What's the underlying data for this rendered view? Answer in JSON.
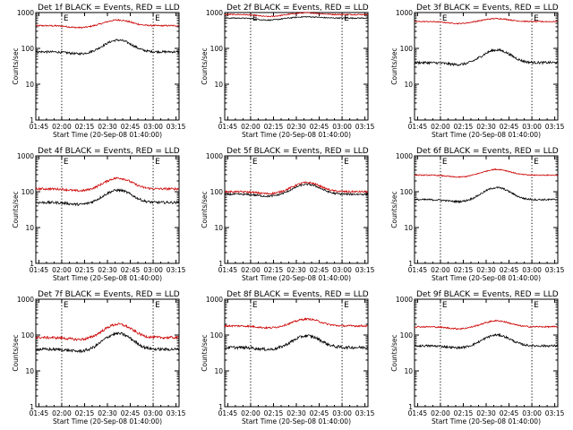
{
  "chart_data": [
    {
      "type": "line",
      "title": "Det 1f BLACK = Events, RED = LLD",
      "xlabel": "Start Time (20-Sep-08 01:40:00)",
      "ylabel": "Counts/sec",
      "yscale": "log",
      "ylim": [
        1,
        1000
      ],
      "xlim_min": [
        103,
        197
      ],
      "x_ticks": [
        "01:45",
        "02:00",
        "02:15",
        "02:30",
        "02:45",
        "03:00",
        "03:15"
      ],
      "y_ticks": [
        "1",
        "10",
        "100",
        "1000"
      ],
      "event_markers": {
        "label": "E",
        "times_min": [
          120,
          180
        ]
      },
      "series": [
        {
          "name": "Events",
          "color": "#000000",
          "base": 80,
          "peak": 170,
          "noise": 0.06
        },
        {
          "name": "LLD",
          "color": "#cc0000",
          "base": 430,
          "peak": 620,
          "noise": 0.04
        }
      ]
    },
    {
      "type": "line",
      "title": "Det 2f BLACK = Events, RED = LLD",
      "xlabel": "Start Time (20-Sep-08 01:40:00)",
      "ylabel": "Counts/sec",
      "yscale": "log",
      "ylim": [
        1,
        1000
      ],
      "xlim_min": [
        103,
        197
      ],
      "x_ticks": [
        "01:45",
        "02:00",
        "02:15",
        "02:30",
        "02:45",
        "03:00",
        "03:15"
      ],
      "y_ticks": [
        "1",
        "10",
        "100",
        "1000"
      ],
      "event_markers": {
        "label": "E",
        "times_min": [
          120,
          180
        ]
      },
      "series": [
        {
          "name": "Events",
          "color": "#000000",
          "base": 700,
          "peak": 760,
          "noise": 0.03
        },
        {
          "name": "LLD",
          "color": "#cc0000",
          "base": 880,
          "peak": 980,
          "noise": 0.03
        }
      ]
    },
    {
      "type": "line",
      "title": "Det 3f BLACK = Events, RED = LLD",
      "xlabel": "Start Time (20-Sep-08 01:40:00)",
      "ylabel": "Counts/sec",
      "yscale": "log",
      "ylim": [
        1,
        1000
      ],
      "xlim_min": [
        103,
        197
      ],
      "x_ticks": [
        "01:45",
        "02:00",
        "02:15",
        "02:30",
        "02:45",
        "03:00",
        "03:15"
      ],
      "y_ticks": [
        "1",
        "10",
        "100",
        "1000"
      ],
      "event_markers": {
        "label": "E",
        "times_min": [
          120,
          180
        ]
      },
      "series": [
        {
          "name": "Events",
          "color": "#000000",
          "base": 40,
          "peak": 90,
          "noise": 0.07
        },
        {
          "name": "LLD",
          "color": "#cc0000",
          "base": 560,
          "peak": 680,
          "noise": 0.03
        }
      ]
    },
    {
      "type": "line",
      "title": "Det 4f BLACK = Events, RED = LLD",
      "xlabel": "Start Time (20-Sep-08 01:40:00)",
      "ylabel": "Counts/sec",
      "yscale": "log",
      "ylim": [
        1,
        1000
      ],
      "xlim_min": [
        103,
        197
      ],
      "x_ticks": [
        "01:45",
        "02:00",
        "02:15",
        "02:30",
        "02:45",
        "03:00",
        "03:15"
      ],
      "y_ticks": [
        "1",
        "10",
        "100",
        "1000"
      ],
      "event_markers": {
        "label": "E",
        "times_min": [
          120,
          180
        ]
      },
      "series": [
        {
          "name": "Events",
          "color": "#000000",
          "base": 50,
          "peak": 110,
          "noise": 0.07
        },
        {
          "name": "LLD",
          "color": "#cc0000",
          "base": 120,
          "peak": 240,
          "noise": 0.06
        }
      ]
    },
    {
      "type": "line",
      "title": "Det 5f BLACK = Events, RED = LLD",
      "xlabel": "Start Time (20-Sep-08 01:40:00)",
      "ylabel": "Counts/sec",
      "yscale": "log",
      "ylim": [
        1,
        1000
      ],
      "xlim_min": [
        103,
        197
      ],
      "x_ticks": [
        "01:45",
        "02:00",
        "02:15",
        "02:30",
        "02:45",
        "03:00",
        "03:15"
      ],
      "y_ticks": [
        "1",
        "10",
        "100",
        "1000"
      ],
      "event_markers": {
        "label": "E",
        "times_min": [
          120,
          180
        ]
      },
      "series": [
        {
          "name": "Events",
          "color": "#000000",
          "base": 85,
          "peak": 160,
          "noise": 0.05
        },
        {
          "name": "LLD",
          "color": "#cc0000",
          "base": 100,
          "peak": 180,
          "noise": 0.05
        }
      ]
    },
    {
      "type": "line",
      "title": "Det 6f BLACK = Events, RED = LLD",
      "xlabel": "Start Time (20-Sep-08 01:40:00)",
      "ylabel": "Counts/sec",
      "yscale": "log",
      "ylim": [
        1,
        1000
      ],
      "xlim_min": [
        103,
        197
      ],
      "x_ticks": [
        "01:45",
        "02:00",
        "02:15",
        "02:30",
        "02:45",
        "03:00",
        "03:15"
      ],
      "y_ticks": [
        "1",
        "10",
        "100",
        "1000"
      ],
      "event_markers": {
        "label": "E",
        "times_min": [
          120,
          180
        ]
      },
      "series": [
        {
          "name": "Events",
          "color": "#000000",
          "base": 60,
          "peak": 130,
          "noise": 0.05
        },
        {
          "name": "LLD",
          "color": "#cc0000",
          "base": 290,
          "peak": 420,
          "noise": 0.03
        }
      ]
    },
    {
      "type": "line",
      "title": "Det 7f BLACK = Events, RED = LLD",
      "xlabel": "Start Time (20-Sep-08 01:40:00)",
      "ylabel": "Counts/sec",
      "yscale": "log",
      "ylim": [
        1,
        1000
      ],
      "xlim_min": [
        103,
        197
      ],
      "x_ticks": [
        "01:45",
        "02:00",
        "02:15",
        "02:30",
        "02:45",
        "03:00",
        "03:15"
      ],
      "y_ticks": [
        "1",
        "10",
        "100",
        "1000"
      ],
      "event_markers": {
        "label": "E",
        "times_min": [
          120,
          180
        ]
      },
      "series": [
        {
          "name": "Events",
          "color": "#000000",
          "base": 40,
          "peak": 110,
          "noise": 0.08
        },
        {
          "name": "LLD",
          "color": "#cc0000",
          "base": 85,
          "peak": 200,
          "noise": 0.07
        }
      ]
    },
    {
      "type": "line",
      "title": "Det 8f BLACK = Events, RED = LLD",
      "xlabel": "Start Time (20-Sep-08 01:40:00)",
      "ylabel": "Counts/sec",
      "yscale": "log",
      "ylim": [
        1,
        1000
      ],
      "xlim_min": [
        103,
        197
      ],
      "x_ticks": [
        "01:45",
        "02:00",
        "02:15",
        "02:30",
        "02:45",
        "03:00",
        "03:15"
      ],
      "y_ticks": [
        "1",
        "10",
        "100",
        "1000"
      ],
      "event_markers": {
        "label": "E",
        "times_min": [
          120,
          180
        ]
      },
      "series": [
        {
          "name": "Events",
          "color": "#000000",
          "base": 45,
          "peak": 95,
          "noise": 0.08
        },
        {
          "name": "LLD",
          "color": "#cc0000",
          "base": 180,
          "peak": 280,
          "noise": 0.05
        }
      ]
    },
    {
      "type": "line",
      "title": "Det 9f BLACK = Events, RED = LLD",
      "xlabel": "Start Time (20-Sep-08 01:40:00)",
      "ylabel": "Counts/sec",
      "yscale": "log",
      "ylim": [
        1,
        1000
      ],
      "xlim_min": [
        103,
        197
      ],
      "x_ticks": [
        "01:45",
        "02:00",
        "02:15",
        "02:30",
        "02:45",
        "03:00",
        "03:15"
      ],
      "y_ticks": [
        "1",
        "10",
        "100",
        "1000"
      ],
      "event_markers": {
        "label": "E",
        "times_min": [
          120,
          180
        ]
      },
      "series": [
        {
          "name": "Events",
          "color": "#000000",
          "base": 50,
          "peak": 100,
          "noise": 0.06
        },
        {
          "name": "LLD",
          "color": "#cc0000",
          "base": 170,
          "peak": 250,
          "noise": 0.04
        }
      ]
    }
  ]
}
